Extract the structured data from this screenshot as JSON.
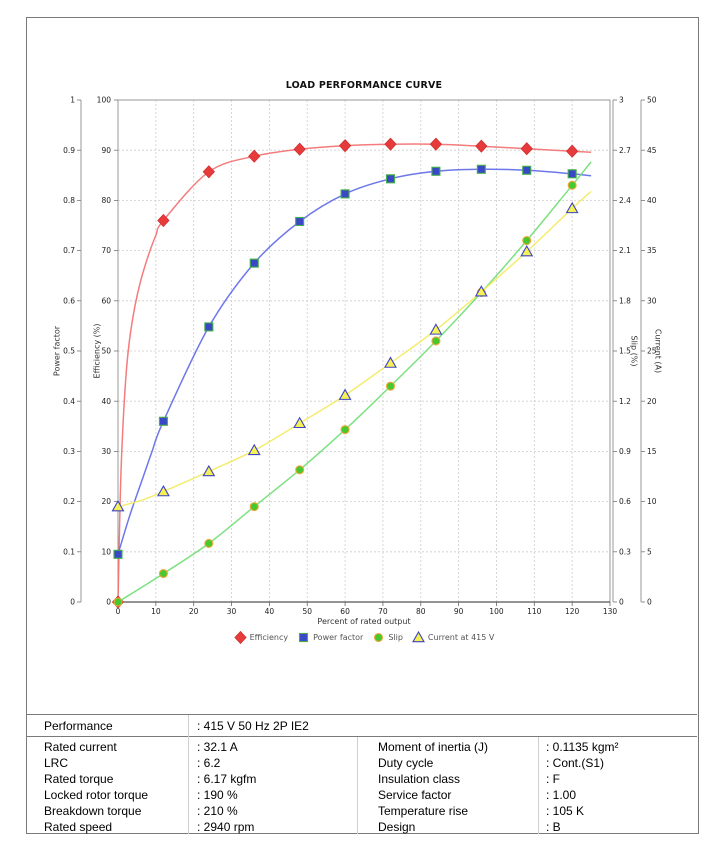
{
  "chart_data": {
    "type": "line",
    "title": "LOAD PERFORMANCE CURVE",
    "xlabel": "Percent of rated output",
    "xlim": [
      0,
      130
    ],
    "x_tick_labels": [
      "0",
      "10",
      "20",
      "30",
      "40",
      "50",
      "60",
      "70",
      "80",
      "90",
      "100",
      "110",
      "120",
      "130"
    ],
    "grid": true,
    "legend_position": "bottom",
    "axes": [
      {
        "id": "power_factor",
        "title": "Power factor",
        "side": "left",
        "min": 0,
        "max": 1,
        "tick_labels": [
          "0",
          "0.1",
          "0.2",
          "0.3",
          "0.4",
          "0.5",
          "0.6",
          "0.7",
          "0.8",
          "0.9",
          "1"
        ]
      },
      {
        "id": "efficiency",
        "title": "Efficiency (%)",
        "side": "left",
        "min": 0,
        "max": 100,
        "tick_labels": [
          "0",
          "10",
          "20",
          "30",
          "40",
          "50",
          "60",
          "70",
          "80",
          "90",
          "100"
        ]
      },
      {
        "id": "slip",
        "title": "Slip (%)",
        "side": "right",
        "min": 0,
        "max": 3,
        "tick_labels": [
          "0",
          "0.3",
          "0.6",
          "0.9",
          "1.2",
          "1.5",
          "1.8",
          "2.1",
          "2.4",
          "2.7",
          "3"
        ]
      },
      {
        "id": "current",
        "title": "Current (A)",
        "side": "right",
        "min": 0,
        "max": 50,
        "tick_labels": [
          "0",
          "5",
          "10",
          "15",
          "20",
          "25",
          "30",
          "35",
          "40",
          "45",
          "50"
        ]
      }
    ],
    "x": [
      0,
      12,
      24,
      36,
      48,
      60,
      72,
      84,
      96,
      108,
      120
    ],
    "series": [
      {
        "name": "Efficiency",
        "axis": "efficiency",
        "marker": "diamond",
        "marker_fill": "#e73b3b",
        "marker_edge": "#d02f2f",
        "line_color": "#f36e6e",
        "values": [
          0,
          76,
          85.7,
          88.8,
          90.2,
          90.9,
          91.2,
          91.2,
          90.8,
          90.3,
          89.8
        ],
        "curve_shape_points": [
          [
            0.5,
            18
          ],
          [
            1,
            30
          ],
          [
            2,
            44
          ],
          [
            3,
            52
          ],
          [
            4.5,
            59
          ],
          [
            6,
            64
          ],
          [
            8,
            69
          ],
          [
            10,
            73
          ]
        ],
        "line_end": [
          125,
          89.6
        ]
      },
      {
        "name": "Power factor",
        "axis": "power_factor",
        "marker": "square",
        "marker_fill": "#3a48c8",
        "marker_edge": "#43b049",
        "line_color": "#5d68e8",
        "values": [
          0.095,
          0.36,
          0.548,
          0.675,
          0.758,
          0.813,
          0.843,
          0.858,
          0.862,
          0.86,
          0.853
        ],
        "curve_shape_points": [
          [
            3,
            0.17
          ],
          [
            6,
            0.235
          ],
          [
            9,
            0.3
          ]
        ],
        "line_end": [
          125,
          0.849
        ]
      },
      {
        "name": "Slip",
        "axis": "slip",
        "marker": "circle",
        "marker_fill": "#46c92e",
        "marker_edge": "#f0a73a",
        "line_color": "#6ede72",
        "values": [
          0,
          0.17,
          0.35,
          0.57,
          0.79,
          1.03,
          1.29,
          1.56,
          1.85,
          2.16,
          2.49
        ],
        "curve_shape_points": [],
        "line_end": [
          125,
          2.63
        ]
      },
      {
        "name": "Current at 415 V",
        "axis": "current",
        "marker": "triangle",
        "marker_fill": "#f7f155",
        "marker_edge": "#3b45c6",
        "line_color": "#f3ea5f",
        "values": [
          9.5,
          11,
          13,
          15.1,
          17.8,
          20.6,
          23.8,
          27.1,
          30.9,
          34.9,
          39.2
        ],
        "curve_shape_points": [
          [
            6,
            10.1
          ]
        ],
        "line_end": [
          125,
          40.9
        ]
      }
    ]
  },
  "table": {
    "header": {
      "label": "Performance",
      "value": ": 415 V 50 Hz 2P IE2"
    },
    "rows": [
      {
        "label": "Rated current",
        "value": ": 32.1 A",
        "label2": "Moment of inertia (J)",
        "value2": ": 0.1135 kgm²"
      },
      {
        "label": "LRC",
        "value": ": 6.2",
        "label2": "Duty cycle",
        "value2": ": Cont.(S1)"
      },
      {
        "label": "Rated torque",
        "value": ": 6.17 kgfm",
        "label2": "Insulation class",
        "value2": ": F"
      },
      {
        "label": "Locked rotor torque",
        "value": ": 190 %",
        "label2": "Service factor",
        "value2": ": 1.00"
      },
      {
        "label": "Breakdown torque",
        "value": ": 210 %",
        "label2": "Temperature rise",
        "value2": ": 105 K"
      },
      {
        "label": "Rated speed",
        "value": ": 2940 rpm",
        "label2": "Design",
        "value2": ": B"
      }
    ]
  }
}
